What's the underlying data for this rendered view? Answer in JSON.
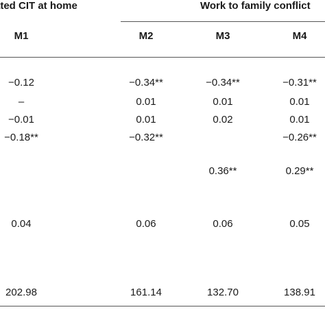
{
  "header": {
    "left_group": "ated CIT at home",
    "right_group": "Work to family conflict"
  },
  "columns": [
    "M1",
    "M2",
    "M3",
    "M4"
  ],
  "rows": [
    [
      "−0.12",
      "−0.34**",
      "−0.34**",
      "−0.31**"
    ],
    [
      "–",
      "0.01",
      "0.01",
      "0.01"
    ],
    [
      "−0.01",
      "0.01",
      "0.02",
      "0.01"
    ],
    [
      "−0.18**",
      "−0.32**",
      "",
      "−0.26**"
    ],
    [
      "",
      "",
      "0.36**",
      "0.29**"
    ],
    [
      "0.04",
      "0.06",
      "0.06",
      "0.05"
    ],
    [
      "202.98",
      "161.14",
      "132.70",
      "138.91"
    ]
  ]
}
